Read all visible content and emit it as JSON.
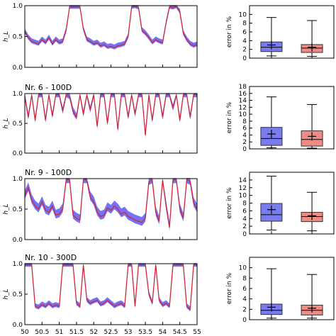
{
  "chart_data": [
    {
      "type": "line",
      "title": "",
      "ylabel": "h_L",
      "xlim": [
        50,
        55
      ],
      "ylim": [
        0,
        1.0
      ],
      "yticks": [
        "0.0",
        "0.5",
        "1.0"
      ],
      "band_width": 0.05,
      "series": [
        {
          "x": [
            50,
            50.1,
            50.2,
            50.3,
            50.4,
            50.5,
            50.6,
            50.7,
            50.8,
            50.9,
            51,
            51.1,
            51.2,
            51.3,
            51.4,
            51.5,
            51.6,
            51.7,
            51.8,
            51.9,
            52,
            52.1,
            52.2,
            52.3,
            52.4,
            52.5,
            52.6,
            52.7,
            52.8,
            52.9,
            53,
            53.1,
            53.2,
            53.3,
            53.4,
            53.5,
            53.6,
            53.7,
            53.8,
            53.9,
            54,
            54.1,
            54.2,
            54.3,
            54.4,
            54.5,
            54.6,
            54.7,
            54.8,
            54.9,
            55
          ],
          "y": [
            0.58,
            0.48,
            0.42,
            0.4,
            0.38,
            0.45,
            0.4,
            0.48,
            0.38,
            0.45,
            0.4,
            0.42,
            0.6,
            0.98,
            0.98,
            0.98,
            0.98,
            0.62,
            0.45,
            0.42,
            0.38,
            0.4,
            0.35,
            0.37,
            0.33,
            0.34,
            0.32,
            0.35,
            0.36,
            0.38,
            0.5,
            0.98,
            0.99,
            0.97,
            0.6,
            0.55,
            0.48,
            0.4,
            0.45,
            0.42,
            0.4,
            0.72,
            0.98,
            0.97,
            0.99,
            0.9,
            0.55,
            0.45,
            0.38,
            0.35,
            0.37
          ]
        }
      ]
    },
    {
      "type": "box",
      "ylabel": "error in %",
      "ylim": [
        0,
        12
      ],
      "yticks": [
        "0",
        "2",
        "4",
        "6",
        "8",
        "10"
      ],
      "boxes": [
        {
          "color": "#7b7bf0",
          "whislo": 0.5,
          "q1": 1.5,
          "med": 2.5,
          "q3": 3.7,
          "whishi": 9.3,
          "mean": 3.0
        },
        {
          "color": "#f08a84",
          "whislo": 0.4,
          "q1": 1.3,
          "med": 2.3,
          "q3": 3.1,
          "whishi": 8.6,
          "mean": 2.5
        }
      ]
    },
    {
      "type": "line",
      "title": "Nr. 6 - 100D",
      "ylabel": "h_L",
      "xlim": [
        50,
        55
      ],
      "ylim": [
        0,
        1.0
      ],
      "yticks": [
        "0.0",
        "0.5",
        "1.0"
      ],
      "band_width": 0.07,
      "series": [
        {
          "x": [
            50,
            50.1,
            50.2,
            50.3,
            50.4,
            50.5,
            50.6,
            50.7,
            50.8,
            50.9,
            51,
            51.1,
            51.2,
            51.3,
            51.4,
            51.5,
            51.6,
            51.7,
            51.8,
            51.9,
            52,
            52.1,
            52.2,
            52.3,
            52.4,
            52.5,
            52.6,
            52.7,
            52.8,
            52.9,
            53,
            53.1,
            53.2,
            53.3,
            53.4,
            53.5,
            53.6,
            53.7,
            53.8,
            53.9,
            54,
            54.1,
            54.2,
            54.3,
            54.4,
            54.5,
            54.6,
            54.7,
            54.8,
            54.9,
            55
          ],
          "y": [
            0.95,
            0.6,
            0.98,
            0.55,
            0.98,
            0.98,
            0.55,
            0.98,
            0.62,
            0.98,
            0.98,
            0.7,
            0.98,
            0.95,
            0.7,
            0.6,
            0.98,
            0.65,
            0.98,
            0.72,
            0.98,
            0.45,
            0.98,
            0.98,
            0.5,
            0.98,
            0.98,
            0.4,
            0.98,
            0.98,
            0.6,
            0.98,
            0.65,
            0.98,
            0.98,
            0.3,
            0.98,
            0.55,
            0.98,
            0.98,
            0.6,
            0.98,
            0.98,
            0.75,
            0.98,
            0.55,
            0.98,
            0.98,
            0.6,
            0.98,
            0.98
          ]
        }
      ]
    },
    {
      "type": "box",
      "ylabel": "error in %",
      "ylim": [
        0,
        18
      ],
      "yticks": [
        "0",
        "2",
        "4",
        "6",
        "8",
        "10",
        "12",
        "14",
        "16",
        "18"
      ],
      "boxes": [
        {
          "color": "#7b7bf0",
          "whislo": 0.3,
          "q1": 1.0,
          "med": 3.0,
          "q3": 6.2,
          "whishi": 15.0,
          "mean": 4.3
        },
        {
          "color": "#f08a84",
          "whislo": 0.2,
          "q1": 0.8,
          "med": 2.7,
          "q3": 5.2,
          "whishi": 12.8,
          "mean": 3.6
        }
      ]
    },
    {
      "type": "line",
      "title": "Nr. 9 - 100D",
      "ylabel": "h_L",
      "xlim": [
        50,
        55
      ],
      "ylim": [
        0,
        1.0
      ],
      "yticks": [
        "0.0",
        "0.5",
        "1.0"
      ],
      "band_width": 0.09,
      "series": [
        {
          "x": [
            50,
            50.1,
            50.2,
            50.3,
            50.4,
            50.5,
            50.6,
            50.7,
            50.8,
            50.9,
            51,
            51.1,
            51.2,
            51.3,
            51.4,
            51.5,
            51.6,
            51.7,
            51.8,
            51.9,
            52,
            52.1,
            52.2,
            52.3,
            52.4,
            52.5,
            52.6,
            52.7,
            52.8,
            52.9,
            53,
            53.1,
            53.2,
            53.3,
            53.4,
            53.5,
            53.6,
            53.7,
            53.8,
            53.9,
            54,
            54.1,
            54.2,
            54.3,
            54.4,
            54.5,
            54.6,
            54.7,
            54.8,
            54.9,
            55
          ],
          "y": [
            0.72,
            0.85,
            0.65,
            0.55,
            0.5,
            0.62,
            0.48,
            0.45,
            0.55,
            0.4,
            0.42,
            0.5,
            0.98,
            0.98,
            0.4,
            0.35,
            0.32,
            0.98,
            0.98,
            0.7,
            0.62,
            0.45,
            0.38,
            0.4,
            0.52,
            0.48,
            0.55,
            0.5,
            0.42,
            0.45,
            0.38,
            0.35,
            0.32,
            0.3,
            0.28,
            0.35,
            0.95,
            0.98,
            0.45,
            0.3,
            0.98,
            0.55,
            0.2,
            0.98,
            0.98,
            0.5,
            0.35,
            0.98,
            0.95,
            0.6,
            0.5
          ]
        }
      ]
    },
    {
      "type": "box",
      "ylabel": "error in %",
      "ylim": [
        0,
        16
      ],
      "yticks": [
        "0",
        "2",
        "4",
        "6",
        "8",
        "10",
        "12",
        "14"
      ],
      "boxes": [
        {
          "color": "#7b7bf0",
          "whislo": 1.0,
          "q1": 3.3,
          "med": 5.0,
          "q3": 7.9,
          "whishi": 15.0,
          "mean": 6.3
        },
        {
          "color": "#f08a84",
          "whislo": 0.8,
          "q1": 3.2,
          "med": 4.5,
          "q3": 5.6,
          "whishi": 10.8,
          "mean": 4.7
        }
      ]
    },
    {
      "type": "line",
      "title": "Nr. 10 - 300D",
      "ylabel": "h_L",
      "xlim": [
        50,
        55
      ],
      "ylim": [
        0,
        1.0
      ],
      "yticks": [
        "0.0",
        "0.5",
        "1.0"
      ],
      "xticks": [
        "50",
        "50.5",
        "51",
        "51.5",
        "52",
        "52.5",
        "53",
        "53.5",
        "54",
        "54.5",
        "55"
      ],
      "band_width": 0.05,
      "series": [
        {
          "x": [
            50,
            50.1,
            50.2,
            50.3,
            50.4,
            50.5,
            50.6,
            50.7,
            50.8,
            50.9,
            51,
            51.1,
            51.2,
            51.3,
            51.4,
            51.5,
            51.6,
            51.7,
            51.8,
            51.9,
            52,
            52.1,
            52.2,
            52.3,
            52.4,
            52.5,
            52.6,
            52.7,
            52.8,
            52.9,
            53,
            53.1,
            53.2,
            53.3,
            53.4,
            53.5,
            53.6,
            53.7,
            53.8,
            53.9,
            54,
            54.1,
            54.2,
            54.3,
            54.4,
            54.5,
            54.6,
            54.7,
            54.8,
            54.9,
            55
          ],
          "y": [
            0.98,
            0.98,
            0.98,
            0.3,
            0.28,
            0.33,
            0.3,
            0.35,
            0.3,
            0.32,
            0.3,
            0.98,
            0.98,
            0.98,
            0.98,
            0.35,
            0.3,
            0.98,
            0.4,
            0.35,
            0.38,
            0.4,
            0.33,
            0.35,
            0.4,
            0.35,
            0.3,
            0.33,
            0.35,
            0.3,
            0.98,
            0.98,
            0.3,
            0.98,
            0.98,
            0.98,
            0.5,
            0.35,
            0.98,
            0.4,
            0.32,
            0.35,
            0.3,
            0.98,
            0.98,
            0.98,
            0.98,
            0.3,
            0.25,
            0.98,
            0.98
          ]
        }
      ]
    },
    {
      "type": "box",
      "ylabel": "error in %",
      "ylim": [
        0,
        12
      ],
      "yticks": [
        "0",
        "2",
        "4",
        "6",
        "8",
        "10"
      ],
      "boxes": [
        {
          "color": "#7b7bf0",
          "whislo": 0.3,
          "q1": 1.0,
          "med": 1.8,
          "q3": 3.0,
          "whishi": 9.8,
          "mean": 2.4
        },
        {
          "color": "#f08a84",
          "whislo": 0.3,
          "q1": 0.9,
          "med": 1.8,
          "q3": 2.8,
          "whishi": 8.7,
          "mean": 2.2
        }
      ]
    }
  ],
  "colors": {
    "measured": "#5b5bf5",
    "model": "#d0263a"
  }
}
